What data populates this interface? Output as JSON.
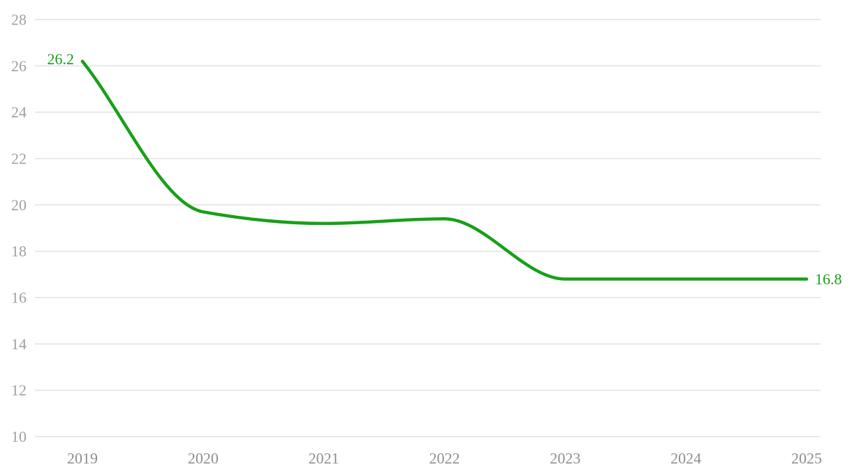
{
  "chart_data": {
    "type": "line",
    "title": "",
    "xlabel": "",
    "ylabel": "",
    "x": [
      2019,
      2020,
      2021,
      2022,
      2023,
      2024,
      2025
    ],
    "x_tick_labels": [
      "2019",
      "2020",
      "2021",
      "2022",
      "2023",
      "2024",
      "2025"
    ],
    "series": [
      {
        "name": "value",
        "values": [
          26.2,
          19.7,
          19.2,
          19.4,
          16.8,
          16.8,
          16.8
        ]
      }
    ],
    "first_point_label": "26.2",
    "last_point_label": "16.8",
    "ylim": [
      10,
      28
    ],
    "y_ticks": [
      10,
      12,
      14,
      16,
      18,
      20,
      22,
      24,
      26,
      28
    ],
    "grid": "horizontal",
    "legend": "none",
    "interpolation": "monotone-smooth",
    "colors": {
      "line": "#17a017",
      "point_label": "#17a017",
      "y_axis_text": "#a0a0a0",
      "x_axis_text": "#8d8d8d",
      "gridline": "#e8e8e8",
      "background": "#ffffff"
    }
  }
}
